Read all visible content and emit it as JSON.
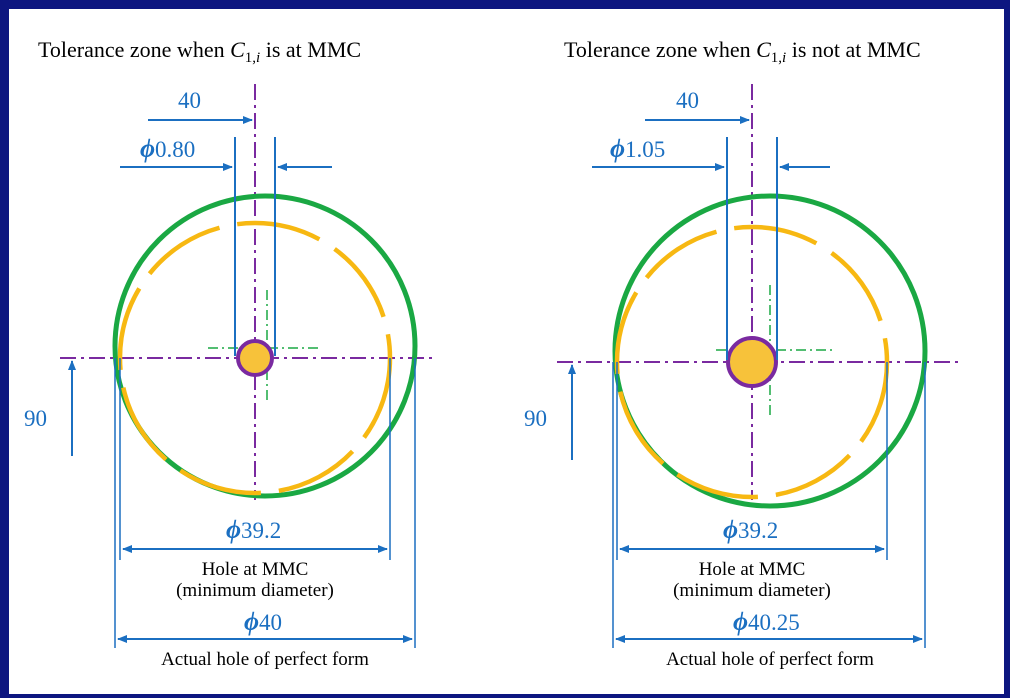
{
  "colors": {
    "frame": "#0d1680",
    "dimension": "#1b6fc1",
    "centerline": "#7a2aa0",
    "actual_hole": "#1aa843",
    "mmc_hole": "#f7b812",
    "pin_fill": "#f7c23a",
    "pin_outline": "#7a2aa0",
    "datum_axis": "#1aa843"
  },
  "panels": [
    {
      "title_pre": "Tolerance zone when ",
      "title_var": "C",
      "title_sub": "1,",
      "title_sub_i": "i",
      "title_post": " is at MMC",
      "dim_x": "40",
      "dim_y": "90",
      "zone_symbol": "ϕ",
      "zone_value": "0.80",
      "mmc_symbol": "ϕ",
      "mmc_value": "39.2",
      "mmc_label_1": "Hole at MMC",
      "mmc_label_2": "(minimum diameter)",
      "actual_symbol": "ϕ",
      "actual_value": "40",
      "actual_label": "Actual hole of perfect form"
    },
    {
      "title_pre": "Tolerance zone when ",
      "title_var": "C",
      "title_sub": "1,",
      "title_sub_i": "i",
      "title_post": " is not at MMC",
      "dim_x": "40",
      "dim_y": "90",
      "zone_symbol": "ϕ",
      "zone_value": "1.05",
      "mmc_symbol": "ϕ",
      "mmc_value": "39.2",
      "mmc_label_1": "Hole at MMC",
      "mmc_label_2": "(minimum diameter)",
      "actual_symbol": "ϕ",
      "actual_value": "40.25",
      "actual_label": "Actual hole of perfect form"
    }
  ]
}
